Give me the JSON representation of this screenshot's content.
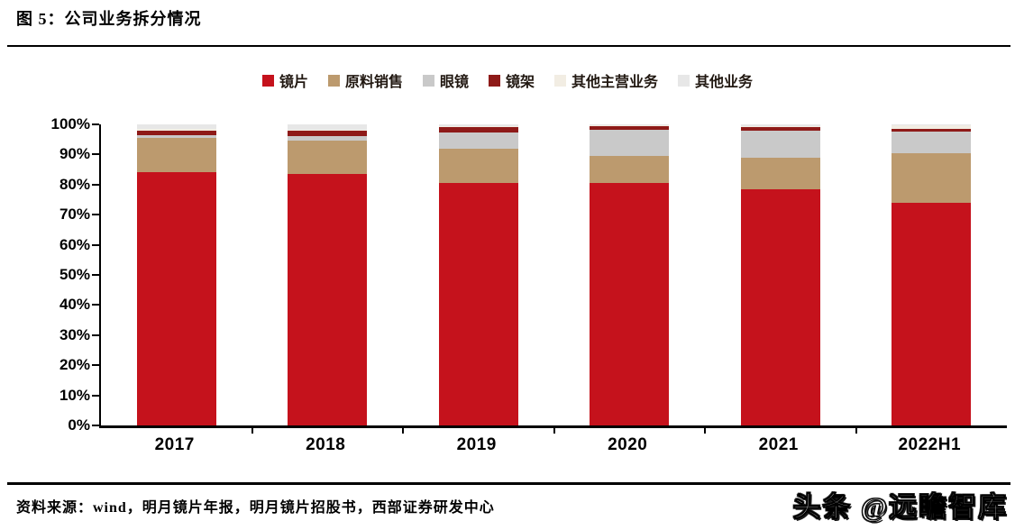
{
  "figure": {
    "title": "图 5：公司业务拆分情况",
    "source": "资料来源：wind，明月镜片年报，明月镜片招股书，西部证券研发中心",
    "watermark": "头条 @远瞻智库"
  },
  "chart_data": {
    "type": "bar",
    "stacked": true,
    "unit": "percent",
    "title": "公司业务拆分情况",
    "categories": [
      "2017",
      "2018",
      "2019",
      "2020",
      "2021",
      "2022H1"
    ],
    "series": [
      {
        "key": "lens",
        "name": "镜片",
        "color": "#C5121C",
        "values": [
          84.0,
          83.5,
          80.5,
          80.5,
          78.5,
          74.0
        ]
      },
      {
        "key": "raw-materials",
        "name": "原料销售",
        "color": "#BC9A6E",
        "values": [
          11.4,
          11.0,
          11.5,
          9.0,
          10.5,
          16.5
        ]
      },
      {
        "key": "glasses",
        "name": "眼镜",
        "color": "#C9C9C9",
        "values": [
          1.0,
          1.7,
          5.3,
          8.7,
          8.9,
          7.0
        ]
      },
      {
        "key": "frames",
        "name": "镜架",
        "color": "#8E1A18",
        "values": [
          1.5,
          1.7,
          1.9,
          1.1,
          1.1,
          1.0
        ]
      },
      {
        "key": "other-main",
        "name": "其他主营业务",
        "color": "#F2EDE3",
        "values": [
          0.5,
          0.4,
          0.3,
          0.3,
          0.3,
          1.3
        ]
      },
      {
        "key": "other",
        "name": "其他业务",
        "color": "#E7E7E7",
        "values": [
          1.6,
          1.7,
          0.5,
          0.4,
          0.7,
          0.2
        ]
      }
    ],
    "y_ticks": [
      "100%",
      "90%",
      "80%",
      "70%",
      "60%",
      "50%",
      "40%",
      "30%",
      "20%",
      "10%",
      "0%"
    ],
    "ylim": [
      0,
      100
    ],
    "grid": false,
    "legend_position": "top",
    "axis_color": "#000000"
  }
}
